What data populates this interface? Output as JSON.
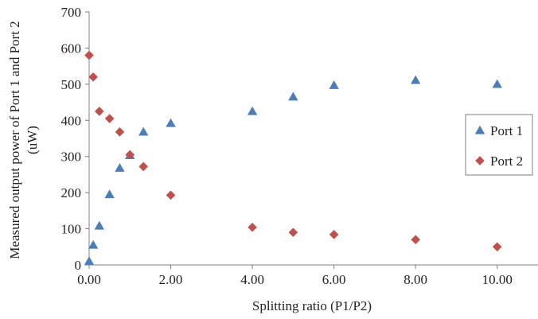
{
  "chart_data": {
    "type": "scatter",
    "xlabel": "Splitting ratio (P1/P2)",
    "ylabel_lines": [
      "Measured output power of Port 1 and Port 2",
      "(uW)"
    ],
    "xlim": [
      0,
      11
    ],
    "ylim": [
      0,
      700
    ],
    "x_ticks": [
      0,
      2,
      4,
      6,
      8,
      10
    ],
    "x_tick_labels": [
      "0.00",
      "2.00",
      "4.00",
      "6.00",
      "8.00",
      "10.00"
    ],
    "y_ticks": [
      0,
      100,
      200,
      300,
      400,
      500,
      600,
      700
    ],
    "y_tick_labels": [
      "0",
      "100",
      "200",
      "300",
      "400",
      "500",
      "600",
      "700"
    ],
    "grid": false,
    "legend_position": "right",
    "series": [
      {
        "name": "Port 1",
        "marker": "triangle",
        "color": "#4a7ebb",
        "x": [
          0,
          0.1,
          0.25,
          0.5,
          0.75,
          1.0,
          1.33,
          2.0,
          4.0,
          5.0,
          6.0,
          8.0,
          10.0
        ],
        "y": [
          10,
          55,
          108,
          195,
          268,
          303,
          368,
          392,
          425,
          465,
          497,
          511,
          500
        ]
      },
      {
        "name": "Port 2",
        "marker": "diamond",
        "color": "#c0504d",
        "x": [
          0,
          0.1,
          0.25,
          0.5,
          0.75,
          1.0,
          1.33,
          2.0,
          4.0,
          5.0,
          6.0,
          8.0,
          10.0
        ],
        "y": [
          580,
          520,
          425,
          405,
          368,
          305,
          272,
          193,
          104,
          90,
          84,
          70,
          50
        ]
      }
    ]
  }
}
